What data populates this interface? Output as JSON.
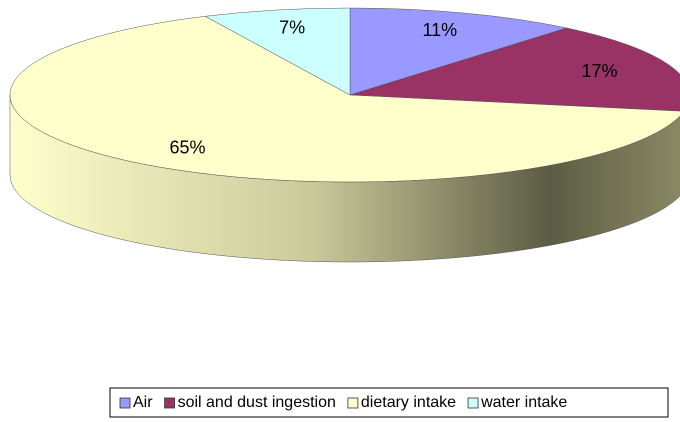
{
  "chart_data": {
    "type": "pie",
    "categories": [
      "Air",
      "soil and dust ingestion",
      "dietary intake",
      "water intake"
    ],
    "values": [
      11,
      17,
      65,
      7
    ],
    "value_labels": [
      "11%",
      "17%",
      "65%",
      "7%"
    ],
    "colors": [
      "#9999ff",
      "#993366",
      "#ffffcc",
      "#ccffff"
    ],
    "legend": "bottom"
  }
}
